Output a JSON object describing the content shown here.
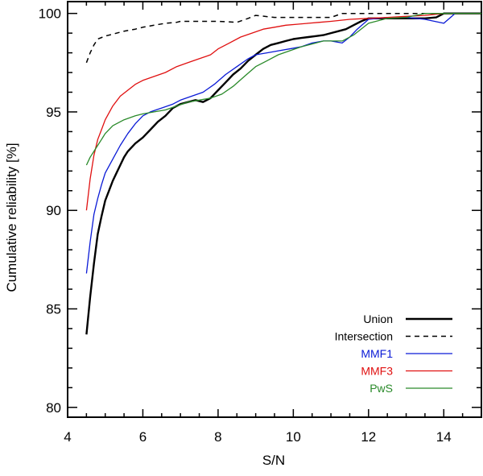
{
  "chart_data": {
    "type": "line",
    "title": "",
    "xlabel": "S/N",
    "ylabel": "Cumulative reliability [%]",
    "xlim": [
      4,
      15
    ],
    "ylim": [
      79.5,
      100.6
    ],
    "xticks": [
      4,
      6,
      8,
      10,
      12,
      14
    ],
    "xtick_labels": [
      "4",
      "6",
      "8",
      "10",
      "12",
      "14"
    ],
    "yticks": [
      80,
      85,
      90,
      95,
      100
    ],
    "ytick_labels": [
      "80",
      "85",
      "90",
      "95",
      "100"
    ],
    "grid": false,
    "legend_position": "bottom-right",
    "series": [
      {
        "name": "Union",
        "color": "#000000",
        "dash": "solid",
        "width": 2.4,
        "x": [
          4.5,
          4.6,
          4.7,
          4.8,
          4.9,
          5.0,
          5.1,
          5.2,
          5.3,
          5.4,
          5.5,
          5.6,
          5.8,
          6.0,
          6.2,
          6.4,
          6.6,
          6.8,
          7.0,
          7.2,
          7.4,
          7.6,
          7.8,
          8.0,
          8.2,
          8.4,
          8.6,
          8.8,
          9.0,
          9.2,
          9.4,
          9.6,
          9.8,
          10.0,
          10.2,
          10.4,
          10.6,
          10.8,
          11.0,
          11.2,
          11.4,
          11.6,
          11.8,
          12.0,
          12.5,
          13.0,
          13.5,
          13.8,
          14.0,
          15.0
        ],
        "y": [
          83.7,
          85.6,
          87.3,
          88.8,
          89.7,
          90.5,
          91.0,
          91.5,
          91.9,
          92.3,
          92.7,
          93.0,
          93.4,
          93.7,
          94.1,
          94.5,
          94.8,
          95.2,
          95.4,
          95.5,
          95.6,
          95.5,
          95.7,
          96.1,
          96.5,
          96.9,
          97.2,
          97.6,
          97.9,
          98.2,
          98.4,
          98.5,
          98.6,
          98.7,
          98.75,
          98.8,
          98.85,
          98.9,
          99.0,
          99.1,
          99.2,
          99.4,
          99.6,
          99.75,
          99.75,
          99.75,
          99.75,
          99.8,
          100.0,
          100.0
        ]
      },
      {
        "name": "Intersection",
        "color": "#000000",
        "dash": "dashed",
        "width": 1.5,
        "x": [
          4.5,
          4.6,
          4.7,
          4.8,
          5.0,
          5.2,
          5.5,
          5.8,
          6.0,
          6.3,
          6.6,
          6.9,
          7.0,
          7.5,
          8.0,
          8.5,
          8.8,
          9.0,
          9.5,
          10.0,
          10.5,
          11.0,
          11.3,
          12.0,
          13.0,
          14.0,
          15.0
        ],
        "y": [
          97.5,
          98.0,
          98.4,
          98.7,
          98.85,
          98.95,
          99.1,
          99.2,
          99.3,
          99.4,
          99.5,
          99.55,
          99.6,
          99.6,
          99.6,
          99.55,
          99.75,
          99.9,
          99.8,
          99.8,
          99.8,
          99.8,
          100.0,
          100.0,
          100.0,
          100.0,
          100.0
        ]
      },
      {
        "name": "MMF1",
        "color": "#0a1ad6",
        "dash": "solid",
        "width": 1.3,
        "x": [
          4.5,
          4.6,
          4.7,
          4.8,
          4.9,
          5.0,
          5.2,
          5.4,
          5.6,
          5.8,
          6.0,
          6.2,
          6.5,
          6.8,
          7.0,
          7.3,
          7.6,
          7.9,
          8.2,
          8.5,
          8.8,
          9.0,
          9.3,
          9.6,
          9.9,
          10.2,
          10.5,
          10.8,
          11.0,
          11.3,
          11.5,
          11.7,
          12.0,
          12.5,
          13.0,
          13.5,
          14.0,
          14.3,
          15.0
        ],
        "y": [
          86.8,
          88.4,
          89.8,
          90.6,
          91.3,
          91.9,
          92.6,
          93.3,
          93.9,
          94.4,
          94.8,
          95.0,
          95.2,
          95.4,
          95.6,
          95.8,
          96.0,
          96.4,
          96.9,
          97.3,
          97.7,
          97.9,
          98.0,
          98.1,
          98.2,
          98.3,
          98.5,
          98.6,
          98.6,
          98.5,
          98.8,
          99.2,
          99.7,
          99.8,
          99.8,
          99.7,
          99.5,
          100.0,
          100.0
        ]
      },
      {
        "name": "MMF3",
        "color": "#e01010",
        "dash": "solid",
        "width": 1.3,
        "x": [
          4.5,
          4.6,
          4.7,
          4.8,
          4.9,
          5.0,
          5.2,
          5.4,
          5.6,
          5.8,
          6.0,
          6.3,
          6.6,
          6.9,
          7.2,
          7.5,
          7.8,
          8.0,
          8.3,
          8.6,
          8.9,
          9.2,
          9.5,
          9.8,
          10.1,
          10.4,
          10.7,
          11.0,
          11.5,
          12.0,
          12.5,
          13.0,
          13.5,
          14.0,
          15.0
        ],
        "y": [
          90.0,
          91.6,
          92.8,
          93.6,
          94.1,
          94.6,
          95.3,
          95.8,
          96.1,
          96.4,
          96.6,
          96.8,
          97.0,
          97.3,
          97.5,
          97.7,
          97.9,
          98.2,
          98.5,
          98.8,
          99.0,
          99.2,
          99.3,
          99.4,
          99.45,
          99.5,
          99.55,
          99.6,
          99.7,
          99.75,
          99.8,
          99.85,
          99.9,
          100.0,
          100.0
        ]
      },
      {
        "name": "PwS",
        "color": "#2a8a2a",
        "dash": "solid",
        "width": 1.3,
        "x": [
          4.5,
          4.6,
          4.7,
          4.8,
          4.9,
          5.0,
          5.2,
          5.5,
          5.8,
          6.0,
          6.3,
          6.6,
          6.9,
          7.2,
          7.5,
          7.8,
          8.1,
          8.4,
          8.7,
          9.0,
          9.3,
          9.6,
          9.9,
          10.2,
          10.5,
          10.8,
          11.0,
          11.3,
          11.6,
          12.0,
          12.5,
          13.0,
          13.5,
          14.0,
          15.0
        ],
        "y": [
          92.3,
          92.7,
          93.0,
          93.3,
          93.6,
          93.9,
          94.3,
          94.6,
          94.8,
          94.9,
          95.0,
          95.1,
          95.3,
          95.5,
          95.6,
          95.7,
          95.9,
          96.3,
          96.8,
          97.3,
          97.6,
          97.9,
          98.1,
          98.3,
          98.45,
          98.6,
          98.6,
          98.6,
          98.9,
          99.5,
          99.75,
          99.8,
          100.0,
          100.0,
          100.0
        ]
      }
    ]
  }
}
